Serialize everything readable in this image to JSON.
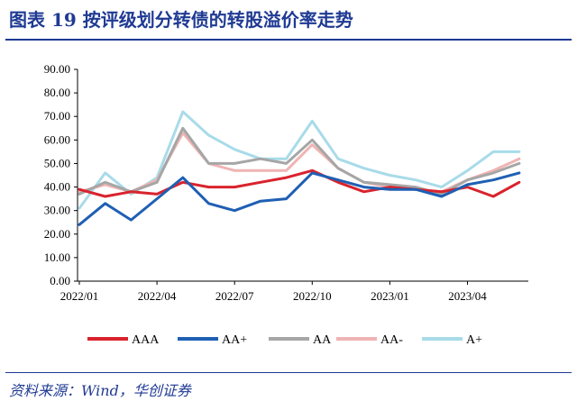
{
  "figure": {
    "title": "图表 19 按评级划分转债的转股溢价率走势",
    "source": "资料来源：Wind，华创证券"
  },
  "chart_data": {
    "type": "line",
    "title": "",
    "xlabel": "",
    "ylabel": "",
    "ylim": [
      0,
      90
    ],
    "y_ticks": [
      "0.00",
      "10.00",
      "20.00",
      "30.00",
      "40.00",
      "50.00",
      "60.00",
      "70.00",
      "80.00",
      "90.00"
    ],
    "y_tick_values": [
      0,
      10,
      20,
      30,
      40,
      50,
      60,
      70,
      80,
      90
    ],
    "x_ticks": [
      "2022/01",
      "2022/04",
      "2022/07",
      "2022/10",
      "2023/01",
      "2023/04"
    ],
    "x_tick_values": [
      "2022-01",
      "2022-04",
      "2022-07",
      "2022-10",
      "2023-01",
      "2023-04"
    ],
    "x": [
      "2022-01",
      "2022-02",
      "2022-03",
      "2022-04",
      "2022-05",
      "2022-06",
      "2022-07",
      "2022-08",
      "2022-09",
      "2022-10",
      "2022-11",
      "2022-12",
      "2023-01",
      "2023-02",
      "2023-03",
      "2023-04",
      "2023-05",
      "2023-06"
    ],
    "legend_position": "bottom",
    "grid": false,
    "series": [
      {
        "name": "AAA",
        "color": "#d9232d",
        "values": [
          39,
          36,
          38,
          37,
          42,
          40,
          40,
          42,
          44,
          47,
          42,
          38,
          40,
          39,
          38,
          40,
          36,
          42
        ]
      },
      {
        "name": "AA+",
        "color": "#1f5fb4",
        "values": [
          24,
          33,
          26,
          35,
          44,
          33,
          30,
          34,
          35,
          46,
          43,
          40,
          39,
          39,
          36,
          41,
          43,
          46
        ]
      },
      {
        "name": "AA",
        "color": "#a6a6a6",
        "values": [
          37,
          42,
          38,
          42,
          65,
          50,
          50,
          52,
          50,
          60,
          48,
          42,
          41,
          40,
          37,
          43,
          46,
          50
        ]
      },
      {
        "name": "AA-",
        "color": "#f0b4b4",
        "values": [
          38,
          41,
          38,
          43,
          63,
          50,
          47,
          47,
          47,
          58,
          48,
          42,
          40,
          39,
          38,
          43,
          47,
          52
        ]
      },
      {
        "name": "A+",
        "color": "#a8dbe9",
        "values": [
          31,
          46,
          37,
          44,
          72,
          62,
          56,
          52,
          52,
          68,
          52,
          48,
          45,
          43,
          40,
          47,
          55,
          55
        ]
      }
    ]
  }
}
